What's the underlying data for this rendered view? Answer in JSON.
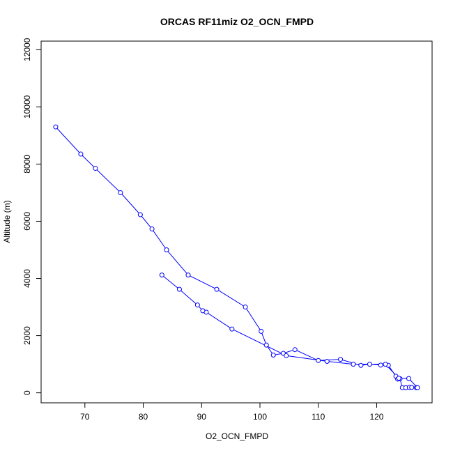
{
  "chart_data": {
    "type": "line",
    "title": "ORCAS RF11miz O2_OCN_FMPD",
    "xlabel": "O2_OCN_FMPD",
    "ylabel": "Altitude (m)",
    "xlim": [
      62.5,
      129.5
    ],
    "ylim": [
      -350,
      12300
    ],
    "xticks": [
      70,
      80,
      90,
      100,
      110,
      120
    ],
    "yticks": [
      0,
      2000,
      4000,
      6000,
      8000,
      10000,
      12000
    ],
    "grid": false,
    "series_color": "#0000ff",
    "marker": "open-circle",
    "series": [
      {
        "x": [
          65.0,
          69.3,
          71.8,
          76.1,
          79.5,
          81.5,
          84.0,
          87.7,
          92.6,
          97.5,
          100.2,
          101.1,
          102.3,
          104.0,
          106.0,
          110.0,
          113.8,
          117.3,
          118.8,
          120.7,
          122.0,
          123.3,
          123.6,
          124.0,
          124.4,
          125.0,
          125.6,
          126.0,
          126.8,
          127.0,
          125.5,
          123.8,
          121.5,
          116.0,
          111.5,
          104.5,
          95.2,
          90.8,
          90.2,
          89.3,
          86.2,
          83.2
        ],
        "y": [
          9300,
          8350,
          7850,
          7000,
          6230,
          5730,
          5000,
          4120,
          3620,
          3000,
          2150,
          1670,
          1320,
          1380,
          1510,
          1130,
          1170,
          960,
          1000,
          970,
          960,
          580,
          480,
          490,
          180,
          180,
          190,
          190,
          180,
          180,
          500,
          510,
          1000,
          1000,
          1100,
          1300,
          2230,
          2820,
          2870,
          3070,
          3620,
          4120
        ]
      }
    ]
  }
}
